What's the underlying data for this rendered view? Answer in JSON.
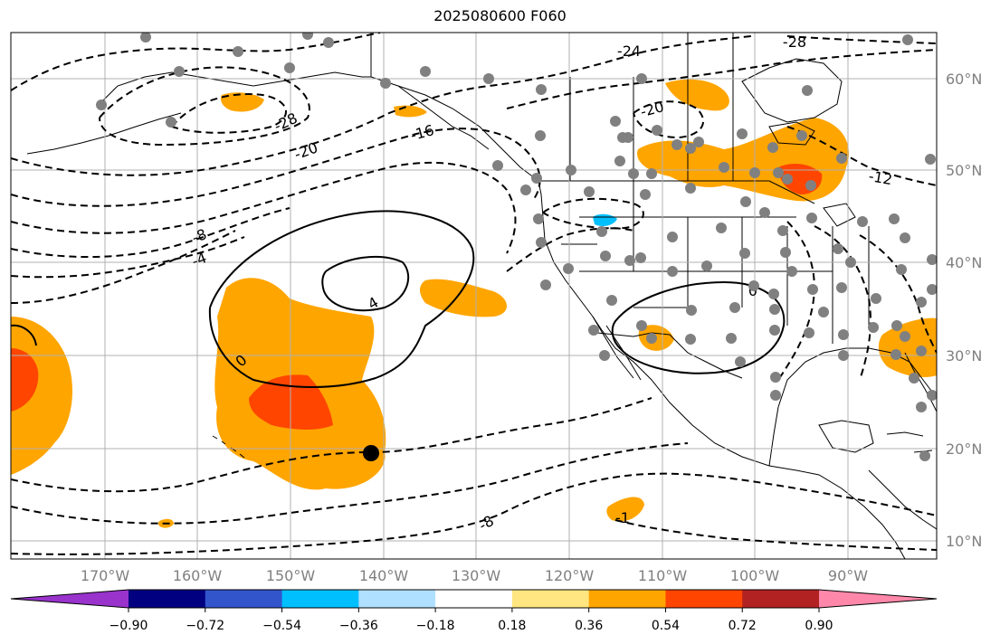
{
  "title": "2025080600 F060",
  "lon_labels": [
    "170°W",
    "160°W",
    "150°W",
    "140°W",
    "130°W",
    "120°W",
    "110°W",
    "100°W",
    "90°W"
  ],
  "lat_labels": [
    "60°N",
    "50°N",
    "40°N",
    "30°N",
    "20°N",
    "10°N"
  ],
  "contour_labels": [
    "-28",
    "-24",
    "-28",
    "-20",
    "-16",
    "-20",
    "-12",
    "-8",
    "-4",
    "4",
    "0",
    "0",
    "-8",
    "-1"
  ],
  "colorbar": {
    "colors": [
      "#9933cc",
      "#000080",
      "#3355cc",
      "#00bfff",
      "#b0e0ff",
      "#ffffff",
      "#ffe680",
      "#ffa500",
      "#ff4500",
      "#b22222",
      "#ff88aa"
    ],
    "labels": [
      "−0.90",
      "−0.72",
      "−0.54",
      "−0.36",
      "−0.18",
      "0.18",
      "0.36",
      "0.54",
      "0.72",
      "0.90"
    ]
  },
  "colors": {
    "orange": "#ffa500",
    "red": "#ff4500",
    "cyan": "#00bfff",
    "station": "#808080"
  }
}
